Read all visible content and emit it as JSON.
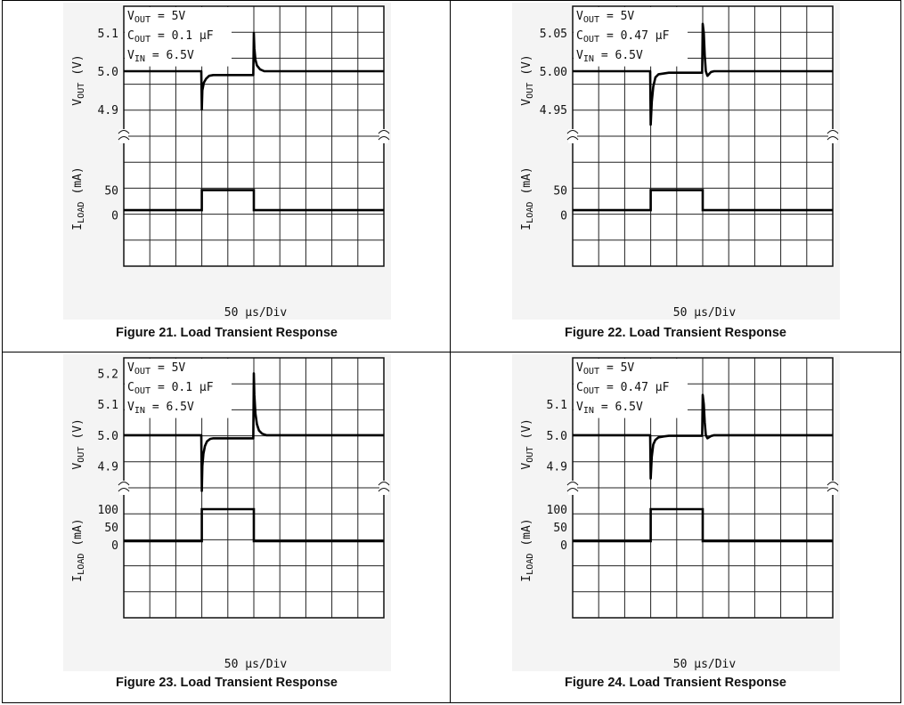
{
  "chart_data": [
    {
      "type": "line",
      "caption": "Figure 21. Load Transient Response",
      "xlabel": "50 µs/Div",
      "upper_ylabel": "VOUT (V)",
      "lower_ylabel": "ILOAD (mA)",
      "conditions": [
        "VOUT = 5V",
        "COUT = 0.1 µF",
        "VIN = 6.5V"
      ],
      "vout_ticks": [
        "5.1",
        "5.0",
        "4.9"
      ],
      "vout_tick_values": [
        5.1,
        5.0,
        4.9
      ],
      "vout_range": [
        4.83,
        5.17
      ],
      "iload_ticks": [
        "50",
        "0"
      ],
      "iload_tick_values": [
        50,
        0
      ],
      "iload_range": [
        -102,
        158
      ],
      "x_range": [
        0,
        500
      ],
      "vout_series": {
        "x": [
          0,
          149,
          150,
          151,
          154,
          158,
          164,
          172,
          180,
          200,
          249,
          250,
          251,
          253,
          256,
          262,
          270,
          290,
          350,
          500
        ],
        "y": [
          5.0,
          5.0,
          4.9,
          4.95,
          4.97,
          4.98,
          4.988,
          4.99,
          4.99,
          4.99,
          4.99,
          5.1,
          5.06,
          5.03,
          5.015,
          5.005,
          5.0,
          5.0,
          5.0,
          5.0
        ]
      },
      "iload_series": {
        "x": [
          0,
          150,
          150,
          250,
          250,
          500
        ],
        "y": [
          10,
          10,
          50,
          50,
          10,
          10
        ]
      }
    },
    {
      "type": "line",
      "caption": "Figure 22. Load Transient Response",
      "xlabel": "50 µs/Div",
      "upper_ylabel": "VOUT (V)",
      "lower_ylabel": "ILOAD (mA)",
      "conditions": [
        "VOUT = 5V",
        "COUT = 0.47 µF",
        "VIN = 6.5V"
      ],
      "vout_ticks": [
        "5.05",
        "5.00",
        "4.95"
      ],
      "vout_tick_values": [
        5.05,
        5.0,
        4.95
      ],
      "vout_range": [
        4.915,
        5.085
      ],
      "iload_ticks": [
        "50",
        "0"
      ],
      "iload_tick_values": [
        50,
        0
      ],
      "iload_range": [
        -102,
        158
      ],
      "x_range": [
        0,
        500
      ],
      "vout_series": {
        "x": [
          0,
          149,
          150,
          152,
          155,
          159,
          165,
          175,
          185,
          200,
          249,
          250,
          252,
          254,
          256,
          259,
          262,
          266,
          272,
          280,
          300,
          350,
          500
        ],
        "y": [
          5.0,
          5.0,
          4.93,
          4.96,
          4.98,
          4.992,
          4.996,
          4.997,
          4.998,
          4.998,
          4.998,
          5.062,
          5.05,
          5.02,
          5.0,
          4.994,
          4.996,
          4.999,
          5.0,
          5.0,
          5.0,
          5.0,
          5.0
        ]
      },
      "iload_series": {
        "x": [
          0,
          150,
          150,
          250,
          250,
          500
        ],
        "y": [
          10,
          10,
          50,
          50,
          10,
          10
        ]
      }
    },
    {
      "type": "line",
      "caption": "Figure 23. Load Transient Response",
      "xlabel": "50 µs/Div",
      "upper_ylabel": "VOUT (V)",
      "lower_ylabel": "ILOAD (mA)",
      "conditions": [
        "VOUT = 5V",
        "COUT = 0.1 µF",
        "VIN = 6.5V"
      ],
      "vout_ticks": [
        "5.2",
        "5.1",
        "5.0",
        "4.9"
      ],
      "vout_tick_values": [
        5.2,
        5.1,
        5.0,
        4.9
      ],
      "vout_range": [
        4.83,
        5.25
      ],
      "iload_ticks": [
        "100",
        "50",
        "0"
      ],
      "iload_tick_values": [
        100,
        50,
        0
      ],
      "iload_range": [
        -205,
        160
      ],
      "x_range": [
        0,
        500
      ],
      "vout_series": {
        "x": [
          0,
          149,
          150,
          151,
          153,
          156,
          160,
          166,
          172,
          180,
          200,
          249,
          250,
          251,
          253,
          256,
          260,
          266,
          274,
          290,
          350,
          500
        ],
        "y": [
          5.0,
          5.0,
          4.82,
          4.9,
          4.94,
          4.965,
          4.98,
          4.988,
          4.99,
          4.99,
          4.99,
          4.99,
          5.2,
          5.13,
          5.07,
          5.035,
          5.015,
          5.005,
          5.0,
          5.0,
          5.0,
          5.0
        ]
      },
      "iload_series": {
        "x": [
          0,
          150,
          150,
          250,
          250,
          500
        ],
        "y": [
          10,
          10,
          100,
          100,
          10,
          10
        ]
      }
    },
    {
      "type": "line",
      "caption": "Figure 24. Load Transient Response",
      "xlabel": "50 µs/Div",
      "upper_ylabel": "VOUT (V)",
      "lower_ylabel": "ILOAD (mA)",
      "conditions": [
        "VOUT = 5V",
        "COUT = 0.47 µF",
        "VIN = 6.5V"
      ],
      "vout_ticks": [
        "5.1",
        "5.0",
        "4.9"
      ],
      "vout_tick_values": [
        5.1,
        5.0,
        4.9
      ],
      "vout_range": [
        4.83,
        5.25
      ],
      "iload_ticks": [
        "100",
        "50",
        "0"
      ],
      "iload_tick_values": [
        100,
        50,
        0
      ],
      "iload_range": [
        -205,
        160
      ],
      "x_range": [
        0,
        500
      ],
      "vout_series": {
        "x": [
          0,
          149,
          150,
          152,
          155,
          159,
          165,
          175,
          185,
          200,
          249,
          250,
          252,
          254,
          256,
          259,
          262,
          266,
          272,
          280,
          300,
          350,
          500
        ],
        "y": [
          5.0,
          5.0,
          4.86,
          4.93,
          4.97,
          4.985,
          4.993,
          4.996,
          4.998,
          4.998,
          4.998,
          5.13,
          5.1,
          5.04,
          5.0,
          4.99,
          4.993,
          4.997,
          5.0,
          5.0,
          5.0,
          5.0,
          5.0
        ]
      },
      "iload_series": {
        "x": [
          0,
          150,
          150,
          250,
          250,
          500
        ],
        "y": [
          10,
          10,
          100,
          100,
          10,
          10
        ]
      }
    }
  ]
}
